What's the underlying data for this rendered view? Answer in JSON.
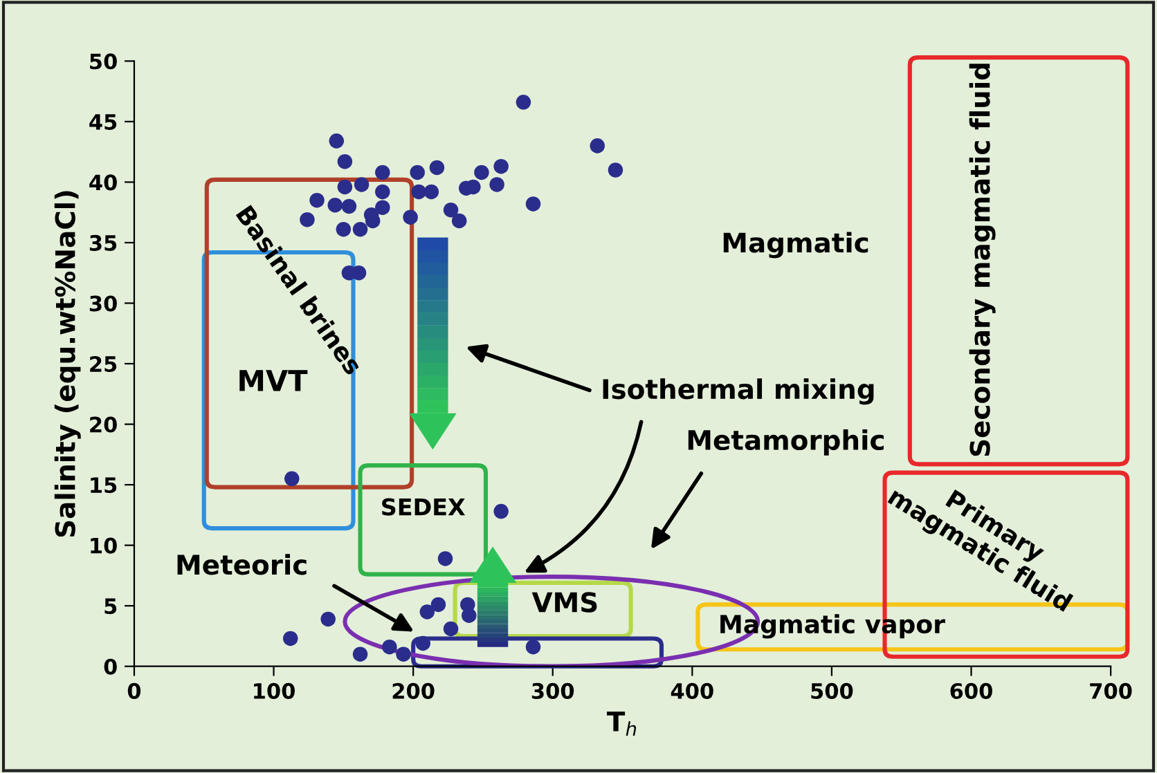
{
  "chart_data": {
    "type": "scatter",
    "xlabel": "T$_{h}$",
    "ylabel": "Salinity (equ.wt%NaCl)",
    "series": [
      {
        "color": "#2b2d8c",
        "marker": "circle",
        "x": [
          145,
          151,
          178,
          203,
          217,
          249,
          263,
          260,
          279,
          286,
          151,
          163,
          178,
          131,
          144,
          154,
          170,
          178,
          204,
          213,
          238,
          243,
          227,
          233,
          198,
          124,
          150,
          162,
          171,
          161,
          154,
          332,
          345,
          113,
          263,
          223,
          112,
          139,
          162,
          183,
          193,
          210,
          218,
          239,
          240,
          227,
          286,
          207
        ],
        "values": [
          43.4,
          41.7,
          40.8,
          40.8,
          41.2,
          40.8,
          41.3,
          39.8,
          46.6,
          38.2,
          39.6,
          39.8,
          39.2,
          38.5,
          38.1,
          38.0,
          37.3,
          37.9,
          39.2,
          39.2,
          39.5,
          39.6,
          37.7,
          36.8,
          37.1,
          36.9,
          36.1,
          36.1,
          36.8,
          32.5,
          32.5,
          43.0,
          41.0,
          15.5,
          12.8,
          8.9,
          2.3,
          3.9,
          1.0,
          1.6,
          1.0,
          4.5,
          5.1,
          5.1,
          4.2,
          3.1,
          1.6,
          1.9
        ]
      }
    ],
    "xlim": [
      0,
      700
    ],
    "ylim": [
      0,
      50
    ],
    "xticks": [
      0,
      100,
      200,
      300,
      400,
      500,
      600,
      700
    ],
    "yticks": [
      0,
      5,
      10,
      15,
      20,
      25,
      30,
      35,
      40,
      45,
      50
    ],
    "grid": false,
    "legend": false,
    "annotations": [
      "Basinal brines",
      "MVT",
      "SEDEX",
      "VMS",
      "Meteoric",
      "Isothermal mixing",
      "Metamorphic",
      "Magmatic",
      "Secondary magmatic fluid",
      "Primary\nmagmatic fluid",
      "Magmatic vapor"
    ]
  }
}
